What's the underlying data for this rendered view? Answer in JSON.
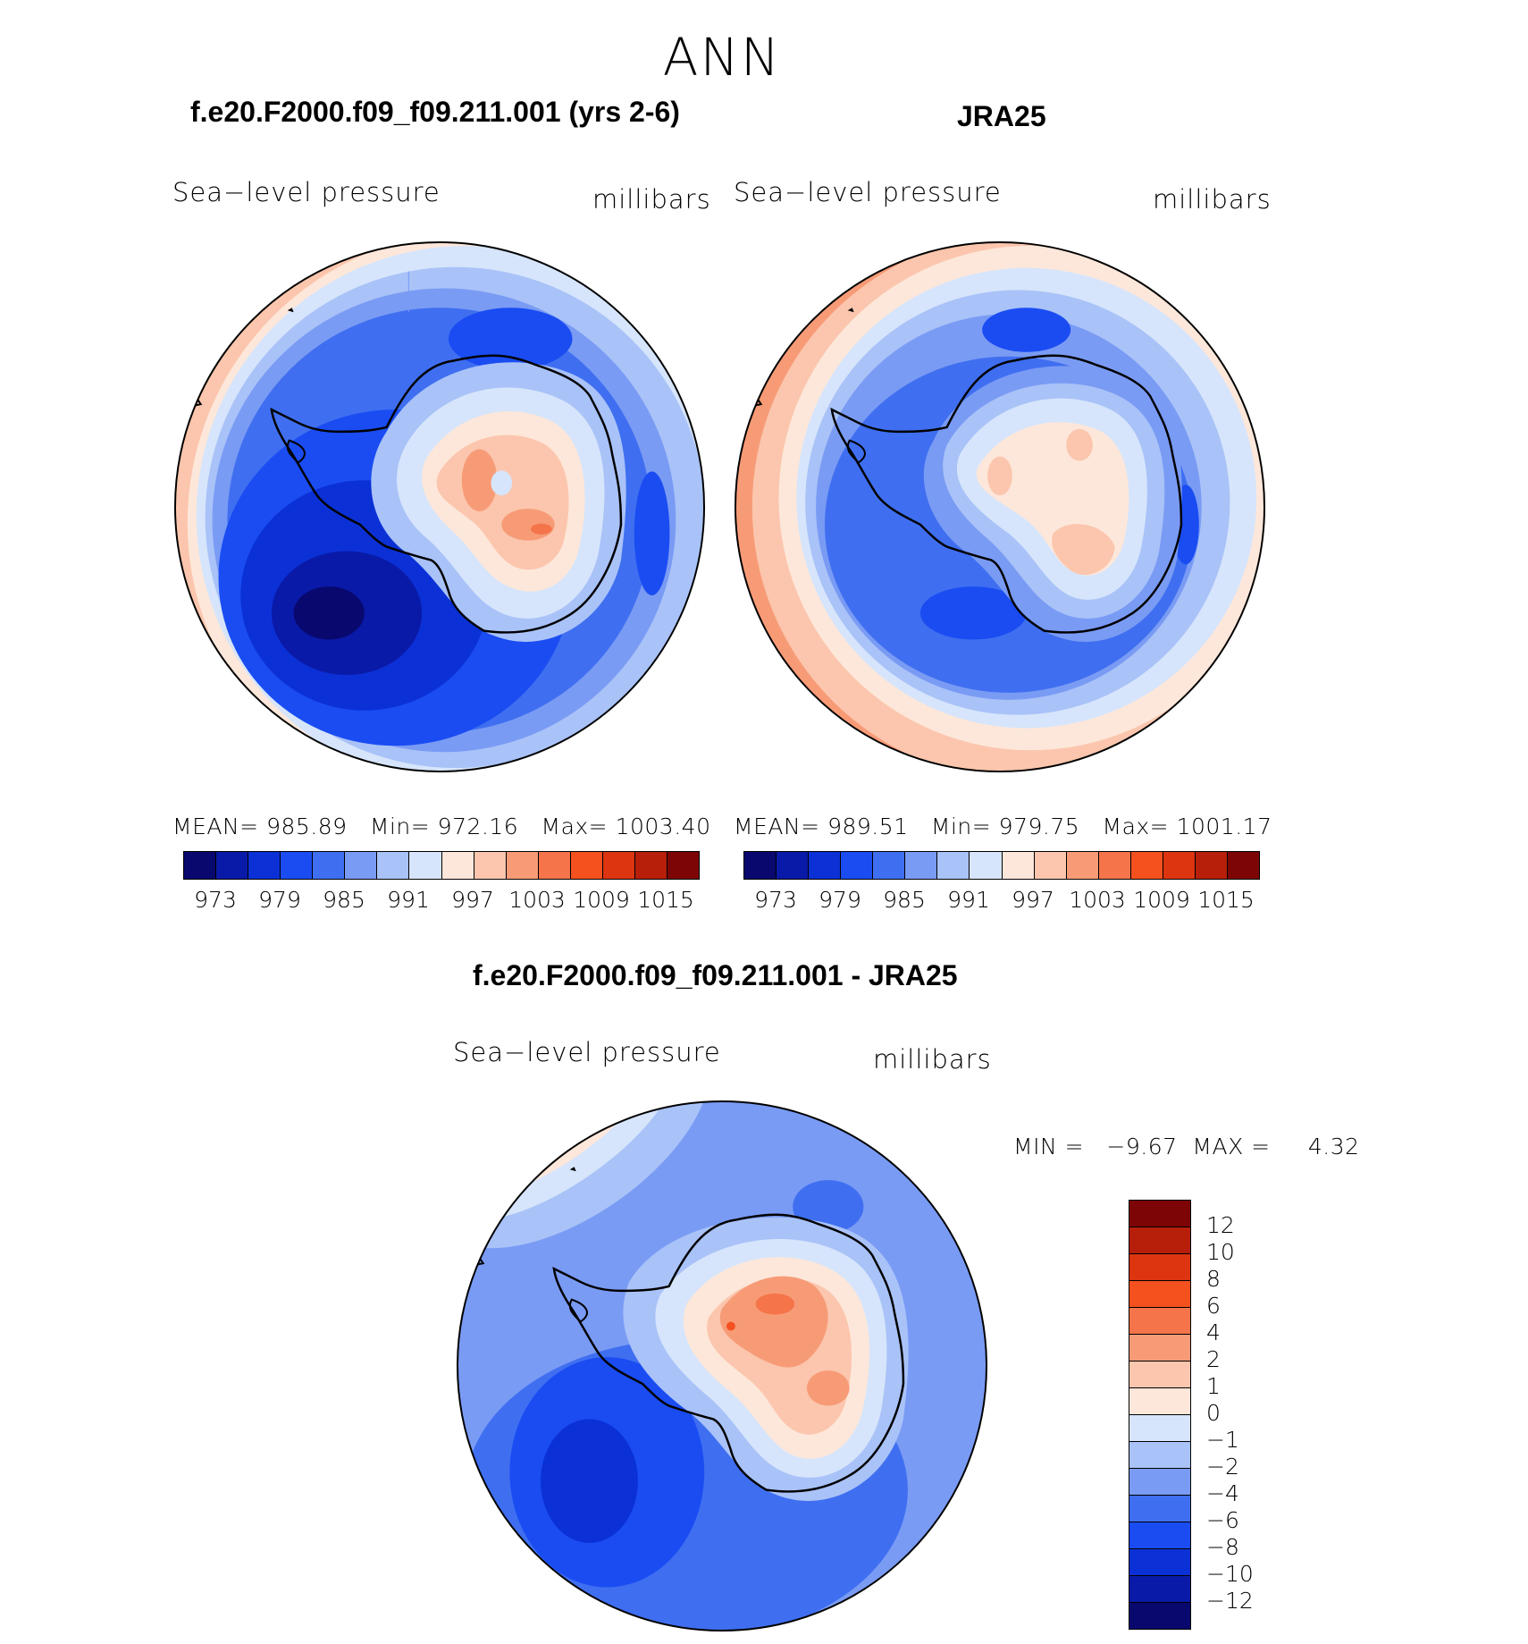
{
  "season": "ANN",
  "panels": [
    {
      "title": "f.e20.F2000.f09_f09.211.001 (yrs 2-6)",
      "variable": "Sea−level pressure",
      "units": "millibars",
      "stats": {
        "mean_label": "MEAN=",
        "mean": "985.89",
        "min_label": "Min=",
        "min": "972.16",
        "max_label": "Max=",
        "max": "1003.40"
      }
    },
    {
      "title": "JRA25",
      "variable": "Sea−level pressure",
      "units": "millibars",
      "stats": {
        "mean_label": "MEAN=",
        "mean": "989.51",
        "min_label": "Min=",
        "min": "979.75",
        "max_label": "Max=",
        "max": "1001.17"
      }
    },
    {
      "title": "f.e20.F2000.f09_f09.211.001 - JRA25",
      "variable": "Sea−level pressure",
      "units": "millibars",
      "min_label": "MIN =",
      "min": "−9.67",
      "max_label": "MAX =",
      "max": "4.32"
    }
  ],
  "colorbar_abs": {
    "colors": [
      "#08086e",
      "#0a1aa8",
      "#0b31d6",
      "#1a4cf2",
      "#3f6ff0",
      "#7a9bf4",
      "#a9c2f8",
      "#d6e5fb",
      "#fde7da",
      "#fbc6ad",
      "#f79b77",
      "#f57449",
      "#f4511f",
      "#dc3510",
      "#b71f0b",
      "#7e0505"
    ],
    "ticks": [
      "973",
      "979",
      "985",
      "991",
      "997",
      "1003",
      "1009",
      "1015"
    ]
  },
  "colorbar_diff": {
    "colors": [
      "#7e0505",
      "#b71f0b",
      "#dc3510",
      "#f4511f",
      "#f57449",
      "#f79b77",
      "#fbc6ad",
      "#fde7da",
      "#d6e5fb",
      "#a9c2f8",
      "#7a9bf4",
      "#3f6ff0",
      "#1a4cf2",
      "#0b31d6",
      "#0a1aa8",
      "#08086e"
    ],
    "ticks": [
      "12",
      "10",
      "8",
      "6",
      "4",
      "2",
      "1",
      "0",
      "−1",
      "−2",
      "−4",
      "−6",
      "−8",
      "−10",
      "−12"
    ]
  }
}
